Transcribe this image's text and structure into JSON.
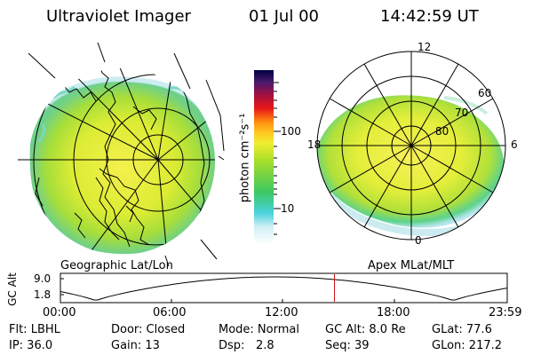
{
  "header": {
    "title": "Ultraviolet Imager",
    "date": "01 Jul 00",
    "time": "14:42:59 UT"
  },
  "colorbar": {
    "label": "photon cm⁻²s⁻¹",
    "ticks": [
      "100",
      "10"
    ]
  },
  "left_panel": {
    "caption": "Geographic Lat/Lon"
  },
  "right_panel": {
    "caption": "Apex MLat/MLT",
    "mlt_labels": {
      "top": "12",
      "left": "18",
      "right": "6",
      "bottom": "0"
    },
    "lat_labels": [
      "60",
      "70",
      "80"
    ]
  },
  "altitude_plot": {
    "ylabel": "GC Alt",
    "yticks": [
      "9.0",
      "1.8"
    ],
    "xticks": [
      "00:00",
      "06:00",
      "12:00",
      "18:00",
      "23:59"
    ],
    "marker_time_hours": 14.72
  },
  "info": {
    "row1": {
      "flt": "Flt: LBHL",
      "door": "Door: Closed",
      "mode": "Mode: Normal",
      "gcalt": "GC Alt: 8.0 Re",
      "glat": "GLat:  77.6"
    },
    "row2": {
      "ip": "IP: 36.0",
      "gain": "Gain: 13",
      "dsp_label": "Dsp:",
      "dsp_value": "2.8",
      "seq": "Seq: 39",
      "glon": "GLon: 217.2"
    }
  },
  "colors": {
    "aurora_fill": "#d8ec2a",
    "aurora_core": "#f3f04a",
    "aurora_edge": "#6ed67a",
    "aurora_fringe": "#a8e4ec",
    "marker": "#d01818"
  }
}
